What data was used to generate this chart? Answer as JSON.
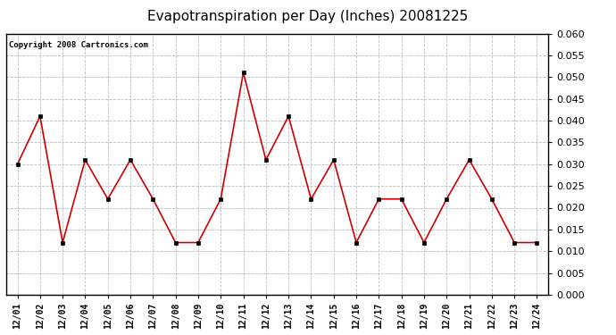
{
  "title": "Evapotranspiration per Day (Inches) 20081225",
  "copyright": "Copyright 2008 Cartronics.com",
  "x_labels": [
    "12/01",
    "12/02",
    "12/03",
    "12/04",
    "12/05",
    "12/06",
    "12/07",
    "12/08",
    "12/09",
    "12/10",
    "12/11",
    "12/12",
    "12/13",
    "12/14",
    "12/15",
    "12/16",
    "12/17",
    "12/18",
    "12/19",
    "12/20",
    "12/21",
    "12/22",
    "12/23",
    "12/24"
  ],
  "values": [
    0.03,
    0.041,
    0.012,
    0.031,
    0.022,
    0.031,
    0.022,
    0.012,
    0.012,
    0.022,
    0.051,
    0.031,
    0.041,
    0.022,
    0.031,
    0.012,
    0.022,
    0.022,
    0.012,
    0.022,
    0.031,
    0.022,
    0.012,
    0.012
  ],
  "line_color": "#cc0000",
  "marker": "s",
  "marker_size": 3,
  "ylim": [
    0.0,
    0.06
  ],
  "yticks": [
    0.0,
    0.005,
    0.01,
    0.015,
    0.02,
    0.025,
    0.03,
    0.035,
    0.04,
    0.045,
    0.05,
    0.055,
    0.06
  ],
  "background_color": "#ffffff",
  "grid_color": "#bbbbbb",
  "title_fontsize": 11,
  "copyright_fontsize": 6.5,
  "tick_fontsize": 7,
  "ytick_fontsize": 8
}
